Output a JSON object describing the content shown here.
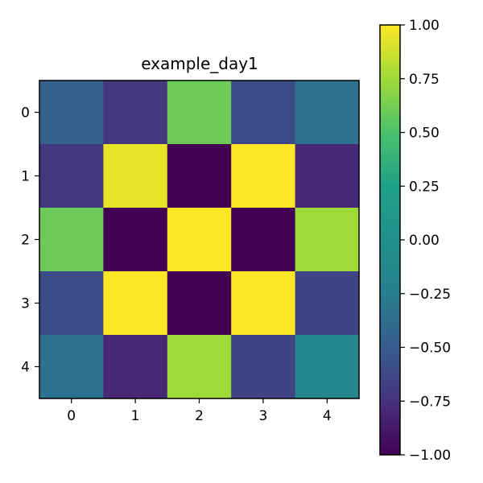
{
  "chart_data": {
    "type": "heatmap",
    "title": "example_day1",
    "xlabel": "",
    "ylabel": "",
    "x_ticks": [
      "0",
      "1",
      "2",
      "3",
      "4"
    ],
    "y_ticks": [
      "0",
      "1",
      "2",
      "3",
      "4"
    ],
    "values": [
      [
        -0.45,
        -0.72,
        0.6,
        -0.6,
        -0.35
      ],
      [
        -0.72,
        0.95,
        -1.0,
        1.0,
        -0.8
      ],
      [
        0.6,
        -1.0,
        1.0,
        -1.0,
        0.75
      ],
      [
        -0.6,
        1.0,
        -1.0,
        1.0,
        -0.65
      ],
      [
        -0.35,
        -0.8,
        0.75,
        -0.65,
        -0.15
      ]
    ],
    "colormap": "viridis",
    "vmin": -1.0,
    "vmax": 1.0,
    "colorbar_ticks": [
      "1.00",
      "0.75",
      "0.50",
      "0.25",
      "0.00",
      "−0.25",
      "−0.50",
      "−0.75",
      "−1.00"
    ],
    "colorbar_values": [
      1.0,
      0.75,
      0.5,
      0.25,
      0.0,
      -0.25,
      -0.5,
      -0.75,
      -1.0
    ],
    "grid": false
  }
}
